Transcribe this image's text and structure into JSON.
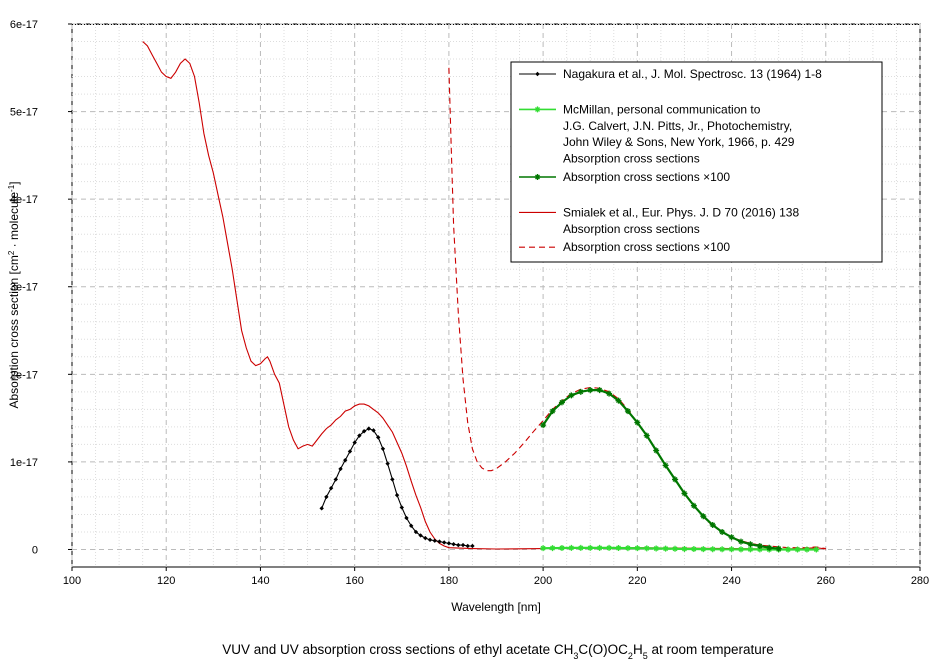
{
  "chart_data": {
    "type": "line",
    "title": "VUV and UV absorption cross sections of ethyl acetate CH3C(O)OC2H5 at room temperature",
    "caption_parts": [
      {
        "text": "VUV and UV absorption cross sections of ethyl acetate CH",
        "sub": false
      },
      {
        "text": "3",
        "sub": true
      },
      {
        "text": "C(O)OC",
        "sub": false
      },
      {
        "text": "2",
        "sub": true
      },
      {
        "text": "H",
        "sub": false
      },
      {
        "text": "5",
        "sub": true
      },
      {
        "text": " at room temperature",
        "sub": false
      }
    ],
    "xlabel": "Wavelength [nm]",
    "ylabel_parts": [
      {
        "text": "Absorption cross section [cm",
        "sup": false
      },
      {
        "text": "2",
        "sup": true
      },
      {
        "text": " · molecule",
        "sup": false
      },
      {
        "text": "-1",
        "sup": true
      },
      {
        "text": "]",
        "sup": false
      }
    ],
    "xlim": [
      100,
      280
    ],
    "ylim": [
      -2e-18,
      6e-17
    ],
    "xticks": [
      100,
      120,
      140,
      160,
      180,
      200,
      220,
      240,
      260,
      280
    ],
    "xtick_labels": [
      "100",
      "120",
      "140",
      "160",
      "180",
      "200",
      "220",
      "240",
      "260",
      "280"
    ],
    "yticks": [
      0,
      1e-17,
      2e-17,
      3e-17,
      4e-17,
      5e-17,
      6e-17
    ],
    "ytick_labels": [
      "0",
      "1e-17",
      "2e-17",
      "3e-17",
      "4e-17",
      "5e-17",
      "6e-17"
    ],
    "grid": true,
    "legend_position": "top-right",
    "legend": [
      {
        "series": "nagakura",
        "lines": [
          "Nagakura et al., J. Mol. Spectrosc. 13 (1964) 1-8"
        ]
      },
      {
        "series": "mcmillan",
        "lines": [
          "McMillan, personal communication to",
          "J.G. Calvert, J.N. Pitts, Jr., Photochemistry,",
          "John Wiley & Sons, New York, 1966, p. 429",
          "Absorption cross sections"
        ]
      },
      {
        "series": "mcmillan_x100",
        "lines": [
          "Absorption cross sections ×100"
        ]
      },
      {
        "series": "smialek",
        "lines": [
          "Smialek et al., Eur. Phys. J. D 70 (2016) 138",
          "Absorption cross sections"
        ]
      },
      {
        "series": "smialek_x100",
        "lines": [
          "Absorption cross sections ×100"
        ]
      }
    ],
    "series": [
      {
        "id": "smialek",
        "name": "Smialek et al., Eur. Phys. J. D 70 (2016) 138 – Absorption cross sections",
        "color": "#cc0000",
        "dash": "none",
        "marker": "none",
        "x": [
          115,
          116,
          117,
          118,
          119,
          120,
          121,
          122,
          123,
          124,
          125,
          126,
          127,
          128,
          129,
          130,
          131,
          132,
          133,
          134,
          135,
          136,
          137,
          138,
          139,
          140,
          141,
          141.5,
          142,
          143,
          144,
          145,
          146,
          147,
          148,
          149,
          150,
          151,
          152,
          153,
          154,
          155,
          156,
          157,
          158,
          159,
          160,
          161,
          162,
          163,
          164,
          165,
          166,
          167,
          168,
          169,
          170,
          171,
          172,
          173,
          174,
          175,
          176,
          177,
          178,
          179,
          180,
          185,
          190,
          200,
          210,
          220,
          230,
          240,
          250,
          255,
          258,
          260
        ],
        "y": [
          5.8e-17,
          5.75e-17,
          5.65e-17,
          5.55e-17,
          5.45e-17,
          5.4e-17,
          5.38e-17,
          5.45e-17,
          5.55e-17,
          5.6e-17,
          5.55e-17,
          5.4e-17,
          5.1e-17,
          4.75e-17,
          4.5e-17,
          4.3e-17,
          4.05e-17,
          3.8e-17,
          3.5e-17,
          3.2e-17,
          2.85e-17,
          2.5e-17,
          2.3e-17,
          2.15e-17,
          2.1e-17,
          2.12e-17,
          2.18e-17,
          2.2e-17,
          2.15e-17,
          2e-17,
          1.9e-17,
          1.65e-17,
          1.4e-17,
          1.25e-17,
          1.15e-17,
          1.18e-17,
          1.2e-17,
          1.18e-17,
          1.25e-17,
          1.32e-17,
          1.38e-17,
          1.42e-17,
          1.48e-17,
          1.52e-17,
          1.58e-17,
          1.6e-17,
          1.64e-17,
          1.66e-17,
          1.66e-17,
          1.64e-17,
          1.6e-17,
          1.56e-17,
          1.5e-17,
          1.42e-17,
          1.34e-17,
          1.22e-17,
          1.1e-17,
          9.5e-18,
          7.8e-18,
          6.2e-18,
          4.8e-18,
          3.2e-18,
          2e-18,
          1.2e-18,
          7e-19,
          4e-19,
          2e-19,
          1e-19,
          5e-20,
          1e-19,
          2e-19,
          2e-19,
          1.5e-19,
          1e-19,
          5e-20,
          1e-19,
          2e-19,
          5e-20
        ]
      },
      {
        "id": "smialek_x100",
        "name": "Smialek et al., Eur. Phys. J. D 70 (2016) 138 – Absorption cross sections ×100",
        "color": "#cc0000",
        "dash": "6,4",
        "marker": "none",
        "x": [
          180,
          180.5,
          181,
          182,
          183,
          184,
          185,
          186,
          187,
          188,
          189,
          190,
          192,
          194,
          196,
          198,
          200,
          202,
          204,
          206,
          208,
          210,
          212,
          214,
          216,
          218,
          220,
          222,
          224,
          226,
          228,
          230,
          232,
          234,
          236,
          238,
          240,
          242,
          244,
          246,
          248,
          250,
          252,
          254,
          256,
          258,
          260
        ],
        "y": [
          5.5e-17,
          4.6e-17,
          3.7e-17,
          2.7e-17,
          1.95e-17,
          1.45e-17,
          1.15e-17,
          1e-17,
          9.3e-18,
          9e-18,
          9e-18,
          9.2e-18,
          1e-17,
          1.1e-17,
          1.22e-17,
          1.35e-17,
          1.47e-17,
          1.6e-17,
          1.7e-17,
          1.78e-17,
          1.83e-17,
          1.85e-17,
          1.84e-17,
          1.8e-17,
          1.72e-17,
          1.6e-17,
          1.45e-17,
          1.3e-17,
          1.13e-17,
          9.5e-18,
          8e-18,
          6.3e-18,
          5e-18,
          3.7e-18,
          2.7e-18,
          2e-18,
          1.4e-18,
          1e-18,
          7e-19,
          5e-19,
          4e-19,
          3e-19,
          2e-19,
          2e-19,
          2e-19,
          3e-19,
          1e-19
        ]
      },
      {
        "id": "nagakura",
        "name": "Nagakura et al., J. Mol. Spectrosc. 13 (1964) 1-8",
        "color": "#000000",
        "dash": "none",
        "marker": "diamond",
        "x": [
          153,
          154,
          155,
          156,
          157,
          158,
          159,
          160,
          161,
          162,
          163,
          164,
          165,
          166,
          167,
          168,
          169,
          170,
          171,
          172,
          173,
          174,
          175,
          176,
          177,
          178,
          179,
          180,
          181,
          182,
          183,
          184,
          185
        ],
        "y": [
          4.7e-18,
          6e-18,
          7e-18,
          8e-18,
          9.2e-18,
          1.02e-17,
          1.12e-17,
          1.22e-17,
          1.3e-17,
          1.35e-17,
          1.38e-17,
          1.36e-17,
          1.28e-17,
          1.15e-17,
          9.8e-18,
          8e-18,
          6.2e-18,
          4.8e-18,
          3.6e-18,
          2.7e-18,
          2e-18,
          1.6e-18,
          1.3e-18,
          1.1e-18,
          1e-18,
          9e-19,
          8e-19,
          7e-19,
          6e-19,
          5e-19,
          5e-19,
          4e-19,
          4e-19
        ]
      },
      {
        "id": "mcmillan",
        "name": "McMillan – Absorption cross sections",
        "color": "#33dd33",
        "dash": "none",
        "marker": "star",
        "x": [
          200,
          202,
          204,
          206,
          208,
          210,
          212,
          214,
          216,
          218,
          220,
          222,
          224,
          226,
          228,
          230,
          232,
          234,
          236,
          238,
          240,
          242,
          244,
          246,
          248,
          250,
          252,
          254,
          256,
          258
        ],
        "y": [
          1.5e-19,
          1.6e-19,
          1.7e-19,
          1.8e-19,
          1.8e-19,
          1.8e-19,
          1.8e-19,
          1.8e-19,
          1.7e-19,
          1.6e-19,
          1.5e-19,
          1.3e-19,
          1.1e-19,
          1e-19,
          8e-20,
          6e-20,
          5e-20,
          4e-20,
          3e-20,
          2e-20,
          2e-20,
          1e-20,
          1e-20,
          1e-20,
          0.0,
          0.0,
          0.0,
          0.0,
          0.0,
          0.0
        ]
      },
      {
        "id": "mcmillan_x100",
        "name": "McMillan – Absorption cross sections ×100",
        "color": "#007700",
        "dash": "none",
        "marker": "star",
        "x": [
          200,
          202,
          204,
          206,
          208,
          210,
          212,
          214,
          216,
          218,
          220,
          222,
          224,
          226,
          228,
          230,
          232,
          234,
          236,
          238,
          240,
          242,
          244,
          246,
          248,
          250
        ],
        "y": [
          1.42e-17,
          1.58e-17,
          1.68e-17,
          1.76e-17,
          1.8e-17,
          1.82e-17,
          1.82e-17,
          1.78e-17,
          1.7e-17,
          1.58e-17,
          1.45e-17,
          1.3e-17,
          1.13e-17,
          9.6e-18,
          8e-18,
          6.4e-18,
          5e-18,
          3.8e-18,
          2.8e-18,
          2e-18,
          1.4e-18,
          9e-19,
          6e-19,
          4e-19,
          2e-19,
          1e-19
        ]
      }
    ]
  }
}
